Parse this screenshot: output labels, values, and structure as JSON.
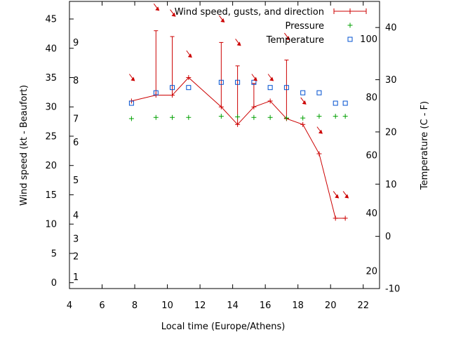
{
  "chart_data": {
    "type": "line",
    "xlabel": "Local time (Europe/Athens)",
    "ylabel_left": "Wind speed (kt - Beaufort)",
    "ylabel_right": "Temperature (C - F)",
    "xlim": [
      4,
      23
    ],
    "ylim_left": [
      -1,
      48
    ],
    "ylim_right": [
      -10,
      45
    ],
    "x_ticks": [
      "4",
      "6",
      "8",
      "10",
      "12",
      "14",
      "16",
      "18",
      "20",
      "22"
    ],
    "y_left_ticks": [
      "0",
      "5",
      "10",
      "15",
      "20",
      "25",
      "30",
      "35",
      "40",
      "45"
    ],
    "y_right_ticks": [
      "-10",
      "0",
      "10",
      "20",
      "30",
      "40"
    ],
    "beaufort_labels": [
      {
        "label": "1",
        "kt": 1
      },
      {
        "label": "2",
        "kt": 4.5
      },
      {
        "label": "3",
        "kt": 7.5
      },
      {
        "label": "4",
        "kt": 11.5
      },
      {
        "label": "5",
        "kt": 17.5
      },
      {
        "label": "6",
        "kt": 24
      },
      {
        "label": "7",
        "kt": 28
      },
      {
        "label": "8",
        "kt": 34.5
      },
      {
        "label": "9",
        "kt": 41
      }
    ],
    "fahrenheit_labels": [
      {
        "label": "20",
        "f": 20
      },
      {
        "label": "40",
        "f": 40
      },
      {
        "label": "60",
        "f": 60
      },
      {
        "label": "80",
        "f": 80
      },
      {
        "label": "100",
        "f": 100
      }
    ],
    "legend": [
      "Wind speed, gusts, and direction",
      "Pressure",
      "Temperature"
    ],
    "colors": {
      "wind": "#cc0000",
      "pressure": "#00a000",
      "temperature": "#0050d0"
    },
    "series": [
      {
        "name": "Wind speed, gusts, and direction",
        "x": [
          7.8,
          9.3,
          10.3,
          11.3,
          13.3,
          14.3,
          15.3,
          16.3,
          17.3,
          18.3,
          19.3,
          20.3,
          20.9
        ],
        "y": [
          31,
          32,
          32,
          35,
          30,
          27,
          30,
          31,
          28,
          27,
          22,
          11,
          11
        ],
        "gusts": [
          null,
          43,
          42,
          null,
          41,
          37,
          34,
          null,
          38,
          null,
          null,
          null,
          null
        ],
        "arrows": [
          {
            "x": 7.8,
            "kt": 35
          },
          {
            "x": 9.3,
            "kt": 47
          },
          {
            "x": 10.3,
            "kt": 46
          },
          {
            "x": 11.3,
            "kt": 39
          },
          {
            "x": 13.3,
            "kt": 45
          },
          {
            "x": 14.3,
            "kt": 41
          },
          {
            "x": 15.3,
            "kt": 35
          },
          {
            "x": 16.3,
            "kt": 35
          },
          {
            "x": 17.3,
            "kt": 42
          },
          {
            "x": 18.3,
            "kt": 31
          },
          {
            "x": 19.3,
            "kt": 26
          },
          {
            "x": 20.3,
            "kt": 15
          },
          {
            "x": 20.9,
            "kt": 15
          }
        ]
      },
      {
        "name": "Pressure",
        "x": [
          7.8,
          9.3,
          10.3,
          11.3,
          13.3,
          14.3,
          15.3,
          16.3,
          17.3,
          18.3,
          19.3,
          20.3,
          20.9
        ],
        "y_kt": [
          28,
          28.2,
          28.2,
          28.2,
          28.4,
          28.3,
          28.2,
          28.2,
          28.1,
          28.1,
          28.4,
          28.4,
          28.4
        ]
      },
      {
        "name": "Temperature",
        "x": [
          7.8,
          9.3,
          10.3,
          11.3,
          13.3,
          14.3,
          15.3,
          16.3,
          17.3,
          18.3,
          19.3,
          20.3,
          20.9
        ],
        "y": [
          25.5,
          27.5,
          28.5,
          28.5,
          29.5,
          29.5,
          29.5,
          28.5,
          28.5,
          27.5,
          27.5,
          25.5,
          25.5
        ]
      }
    ]
  }
}
